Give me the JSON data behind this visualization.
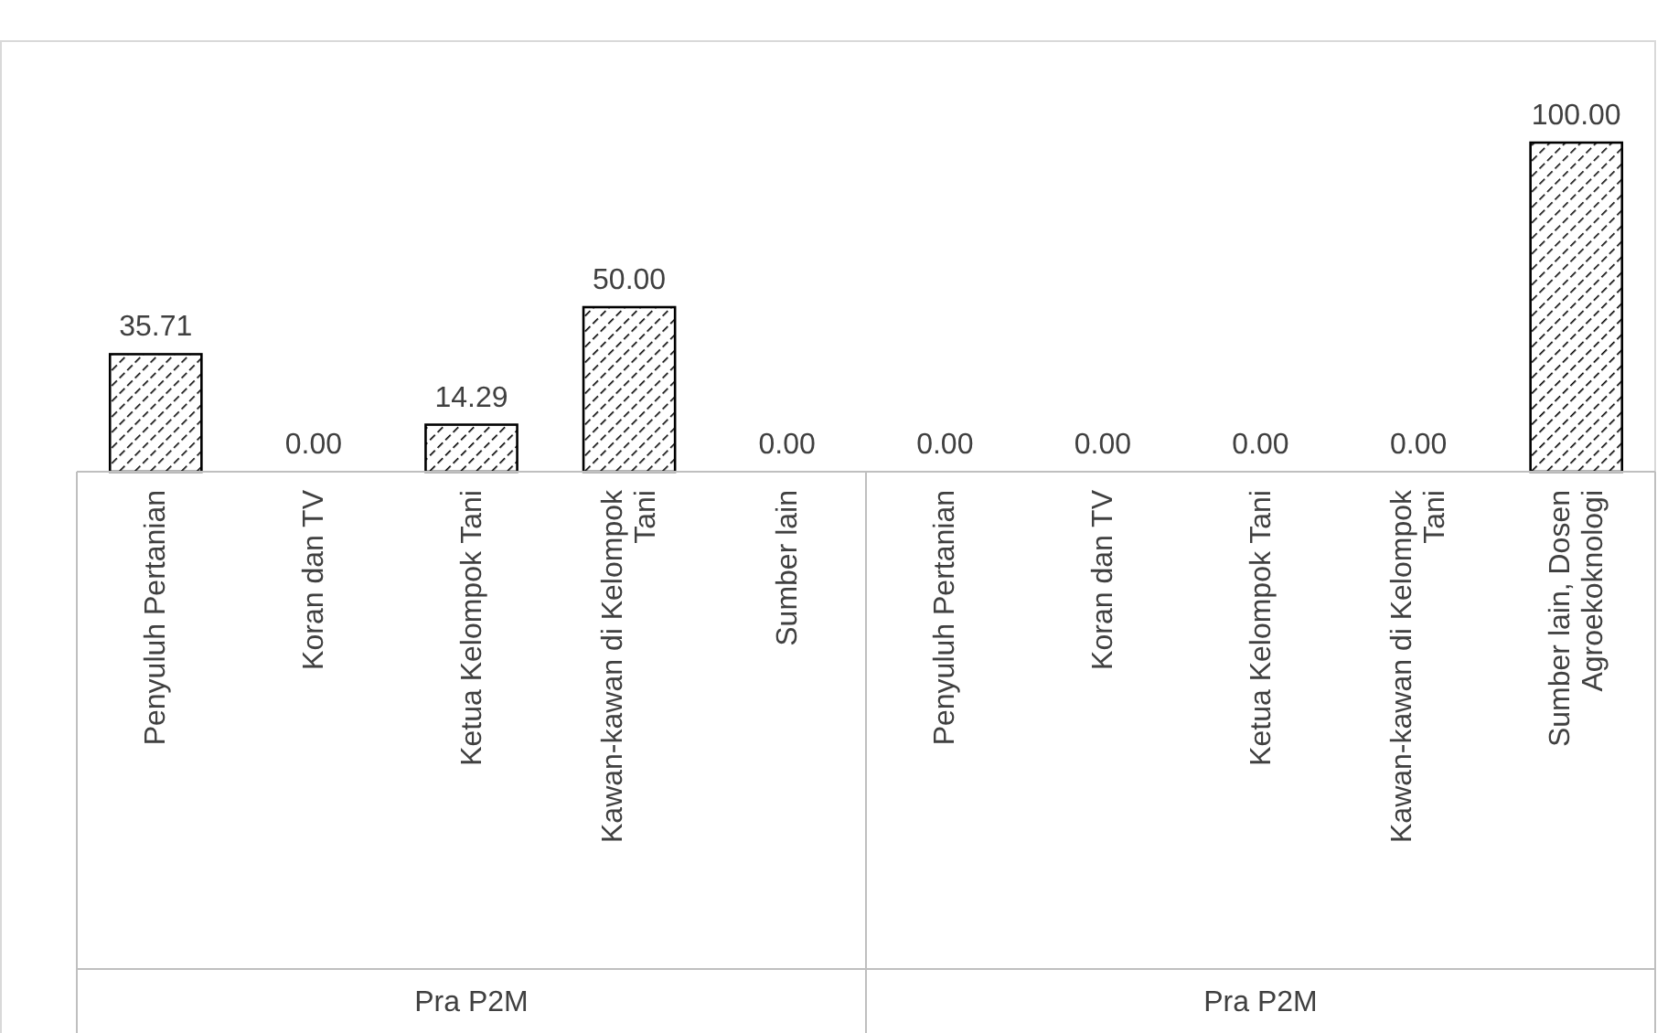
{
  "chart_data": {
    "type": "bar",
    "categories": [
      "Penyuluh Pertanian",
      "Koran dan TV",
      "Ketua Kelompok Tani",
      "Kawan-kawan di Kelompok Tani",
      "Sumber lain",
      "Penyuluh Pertanian",
      "Koran dan TV",
      "Ketua Kelompok Tani",
      "Kawan-kawan di Kelompok Tani",
      "Sumber lain, Dosen Agroekoknologi"
    ],
    "values": [
      35.71,
      0,
      14.29,
      50,
      0,
      0,
      0,
      0,
      0,
      100
    ],
    "value_labels": [
      "35.71",
      "0.00",
      "14.29",
      "50.00",
      "0.00",
      "0.00",
      "0.00",
      "0.00",
      "0.00",
      "100.00"
    ],
    "color": "#000000",
    "annotations": [
      "Pra P2M",
      "Pra P2M"
    ]
  }
}
